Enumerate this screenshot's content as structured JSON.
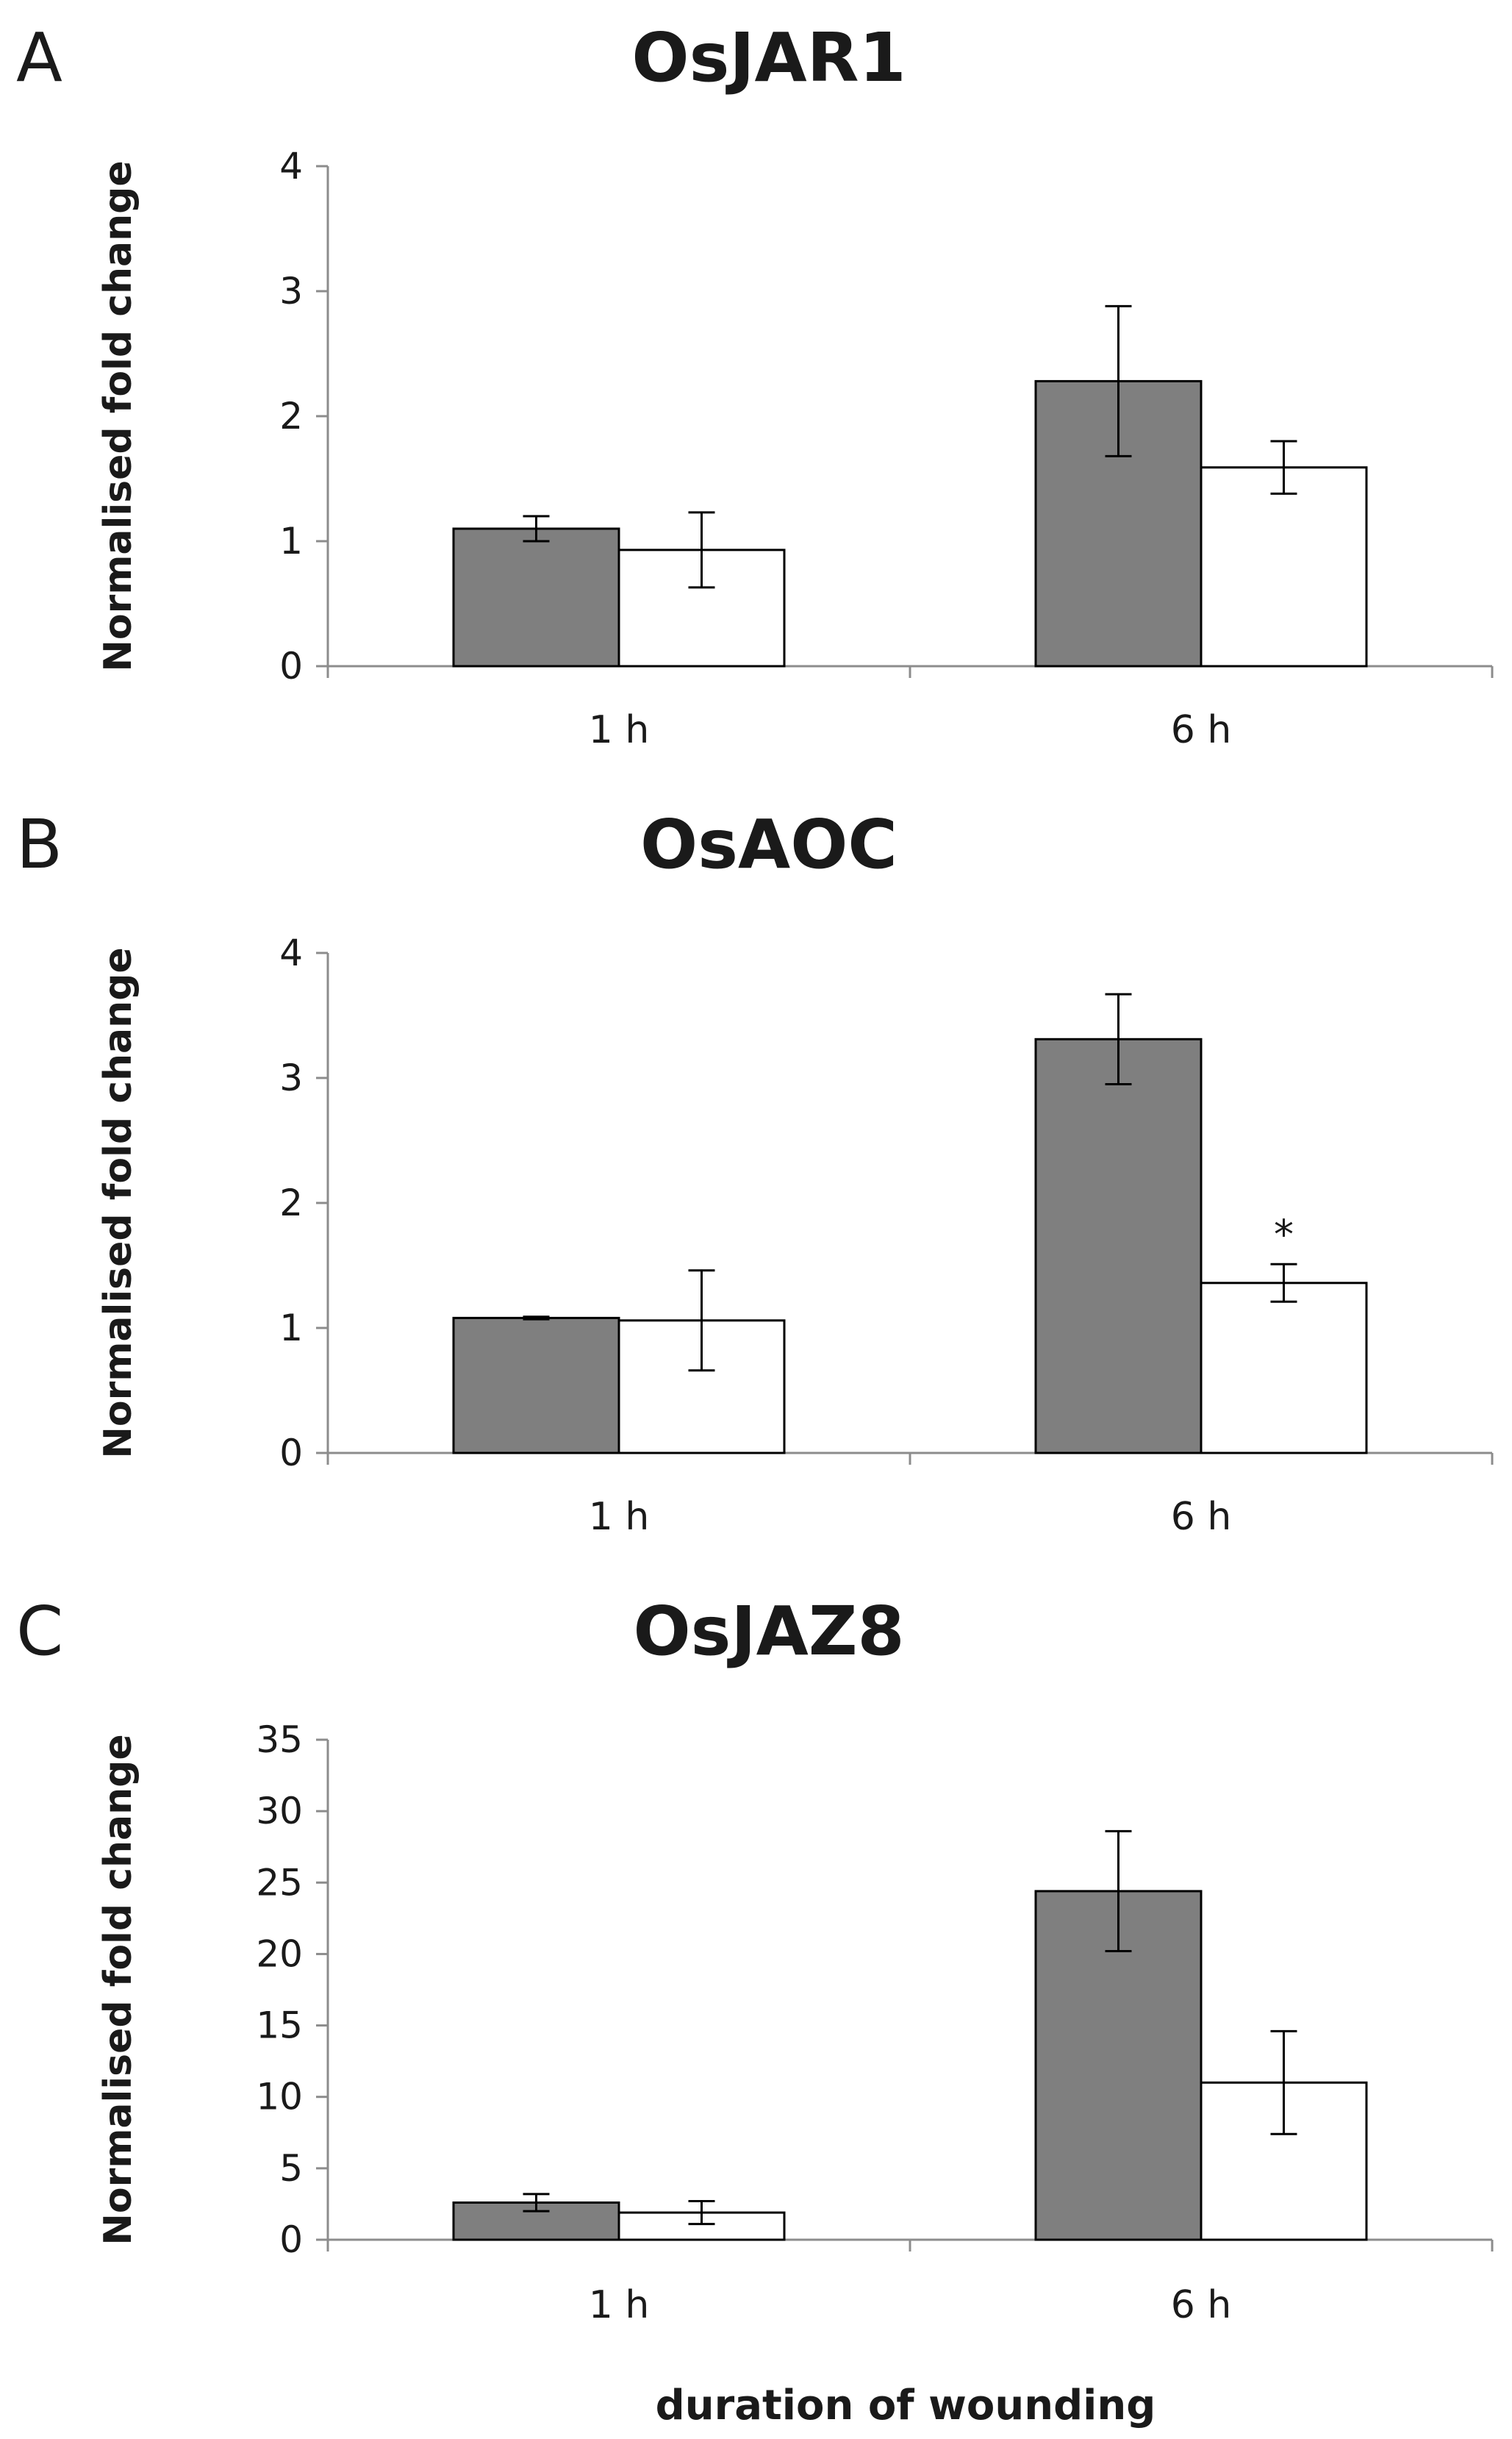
{
  "colors": {
    "treated": "#7f7f7f",
    "control": "#ffffff",
    "bar_stroke": "#000000"
  },
  "x_axis_title": "duration of wounding",
  "chart_data": [
    {
      "type": "bar",
      "panel_label": "A",
      "title": "OsJAR1",
      "ylabel": "Normalised fold change",
      "xlabel": "",
      "ylim": [
        0,
        4
      ],
      "yticks": [
        0,
        1,
        2,
        3,
        4
      ],
      "categories": [
        "1 h",
        "6 h"
      ],
      "series": [
        {
          "name": "dark",
          "values": [
            1.1,
            2.28
          ],
          "errors": [
            0.1,
            0.6
          ],
          "sig": [
            "",
            ""
          ]
        },
        {
          "name": "white",
          "values": [
            0.93,
            1.59
          ],
          "errors": [
            0.3,
            0.21
          ],
          "sig": [
            "",
            ""
          ]
        }
      ]
    },
    {
      "type": "bar",
      "panel_label": "B",
      "title": "OsAOC",
      "ylabel": "Normalised fold change",
      "xlabel": "",
      "ylim": [
        0,
        4
      ],
      "yticks": [
        0,
        1,
        2,
        3,
        4
      ],
      "categories": [
        "1 h",
        "6 h"
      ],
      "series": [
        {
          "name": "dark",
          "values": [
            1.08,
            3.31
          ],
          "errors": [
            0.01,
            0.36
          ],
          "sig": [
            "",
            ""
          ]
        },
        {
          "name": "white",
          "values": [
            1.06,
            1.36
          ],
          "errors": [
            0.4,
            0.15
          ],
          "sig": [
            "",
            "*"
          ]
        }
      ]
    },
    {
      "type": "bar",
      "panel_label": "C",
      "title": "OsJAZ8",
      "ylabel": "Normalised fold change",
      "xlabel": "duration of wounding",
      "ylim": [
        0,
        35
      ],
      "yticks": [
        0,
        5,
        10,
        15,
        20,
        25,
        30,
        35
      ],
      "categories": [
        "1 h",
        "6 h"
      ],
      "series": [
        {
          "name": "dark",
          "values": [
            2.6,
            24.4
          ],
          "errors": [
            0.6,
            4.2
          ],
          "sig": [
            "",
            ""
          ]
        },
        {
          "name": "white",
          "values": [
            1.9,
            11.0
          ],
          "errors": [
            0.8,
            3.6
          ],
          "sig": [
            "",
            ""
          ]
        }
      ]
    }
  ]
}
